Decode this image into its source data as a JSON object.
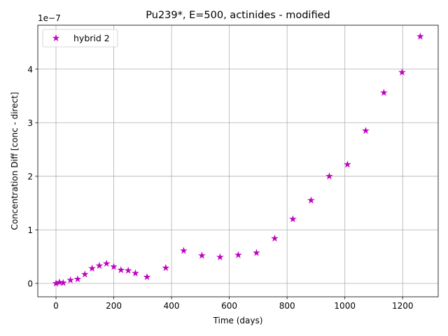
{
  "chart_data": {
    "type": "scatter",
    "title": "Pu239*, E=500, actinides - modified",
    "xlabel": "Time (days)",
    "ylabel": "Concentration Diff [conc - direct]",
    "y_scale_label": "1e−7",
    "xlim": [
      -63,
      1323
    ],
    "ylim": [
      -0.25,
      4.82
    ],
    "xticks": [
      0,
      200,
      400,
      600,
      800,
      1000,
      1200
    ],
    "xtick_labels": [
      "0",
      "200",
      "400",
      "600",
      "800",
      "1000",
      "1200"
    ],
    "yticks": [
      0,
      1,
      2,
      3,
      4
    ],
    "ytick_labels": [
      "0",
      "1",
      "2",
      "3",
      "4"
    ],
    "grid": true,
    "legend_position": "top-left",
    "series": [
      {
        "name": "hybrid 2",
        "color": "#bf00bf",
        "marker": "star",
        "x": [
          0,
          12,
          25,
          50,
          75,
          100,
          125,
          150,
          175,
          200,
          225,
          250,
          275,
          315,
          380,
          442,
          505,
          568,
          631,
          694,
          757,
          820,
          883,
          946,
          1009,
          1072,
          1135,
          1198,
          1261
        ],
        "y": [
          0.0,
          0.02,
          0.01,
          0.06,
          0.08,
          0.17,
          0.28,
          0.33,
          0.37,
          0.31,
          0.25,
          0.24,
          0.19,
          0.12,
          0.29,
          0.61,
          0.52,
          0.49,
          0.53,
          0.57,
          0.84,
          1.2,
          1.55,
          2.0,
          2.22,
          2.85,
          3.56,
          3.94,
          4.61
        ]
      }
    ]
  }
}
